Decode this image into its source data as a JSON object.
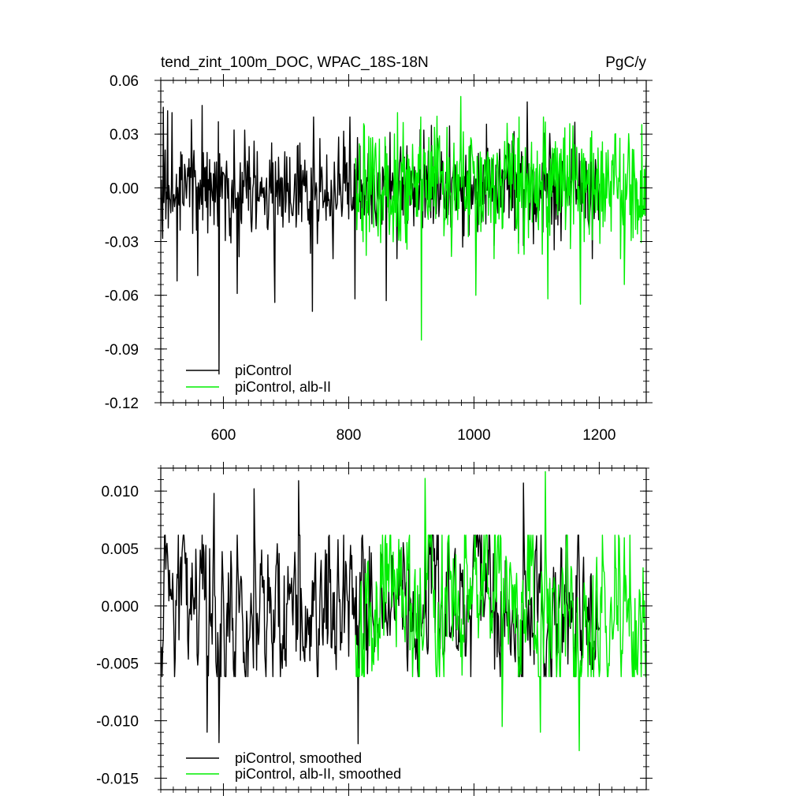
{
  "chart_data": [
    {
      "type": "line",
      "title": "tend_zint_100m_DOC, WPAC_18S-18N",
      "units": "PgC/y",
      "xlim": [
        500,
        1275
      ],
      "ylim": [
        -0.12,
        0.06
      ],
      "x_ticks": [
        600,
        800,
        1000,
        1200
      ],
      "x_tick_labels": [
        "600",
        "800",
        "1000",
        "1200"
      ],
      "y_ticks": [
        0.06,
        0.03,
        0.0,
        -0.03,
        -0.06,
        -0.09,
        -0.12
      ],
      "y_tick_labels": [
        "0.06",
        "0.03",
        "0.00",
        "-0.03",
        "-0.06",
        "-0.09",
        "-0.12"
      ],
      "grid": false,
      "legend_position": "bottom-left",
      "series": [
        {
          "name": "piControl",
          "color": "#000000",
          "x_start": 501,
          "x_end": 1200,
          "amplitude": 0.014,
          "values": [
            [
              566,
              0.046
            ],
            [
              504,
              0.045
            ],
            [
              511,
              0.043
            ],
            [
              518,
              0.042
            ],
            [
              593,
              -0.104
            ],
            [
              682,
              -0.064
            ],
            [
              742,
              -0.069
            ],
            [
              860,
              -0.063
            ],
            [
              810,
              -0.062
            ],
            [
              1085,
              0.048
            ],
            [
              622,
              -0.059
            ],
            [
              559,
              -0.049
            ],
            [
              526,
              -0.052
            ]
          ]
        },
        {
          "name": "piControl, alb-II",
          "color": "#00ee00",
          "x_start": 811,
          "x_end": 1275,
          "amplitude": 0.017,
          "values": [
            [
              979,
              0.051
            ],
            [
              916,
              -0.085
            ],
            [
              878,
              0.042
            ],
            [
              941,
              0.04
            ],
            [
              1118,
              -0.062
            ],
            [
              1170,
              -0.065
            ],
            [
              1240,
              -0.054
            ],
            [
              1003,
              -0.06
            ]
          ]
        }
      ]
    },
    {
      "type": "line",
      "title": "",
      "xlim": [
        500,
        1275
      ],
      "ylim": [
        -0.016,
        0.012
      ],
      "x_ticks": [
        600,
        800,
        1000,
        1200
      ],
      "y_ticks": [
        0.01,
        0.005,
        0.0,
        -0.005,
        -0.01,
        -0.015
      ],
      "y_tick_labels": [
        "0.010",
        "0.005",
        "0.000",
        "-0.005",
        "-0.010",
        "-0.015"
      ],
      "grid": false,
      "legend_position": "bottom-left",
      "series": [
        {
          "name": "piControl, smoothed",
          "color": "#000000",
          "x_start": 501,
          "x_end": 1200,
          "amplitude": 0.0042,
          "values": [
            [
              720,
              0.0109
            ],
            [
              593,
              -0.0119
            ],
            [
              574,
              -0.011
            ],
            [
              815,
              -0.012
            ],
            [
              585,
              0.0098
            ],
            [
              649,
              0.0102
            ],
            [
              1079,
              0.0107
            ]
          ]
        },
        {
          "name": "piControl, alb-II, smoothed",
          "color": "#00ee00",
          "x_start": 811,
          "x_end": 1275,
          "amplitude": 0.0046,
          "values": [
            [
              1114,
              0.0117
            ],
            [
              1168,
              -0.0126
            ],
            [
              1106,
              -0.011
            ],
            [
              922,
              0.0111
            ],
            [
              1045,
              -0.0105
            ]
          ]
        }
      ]
    }
  ]
}
